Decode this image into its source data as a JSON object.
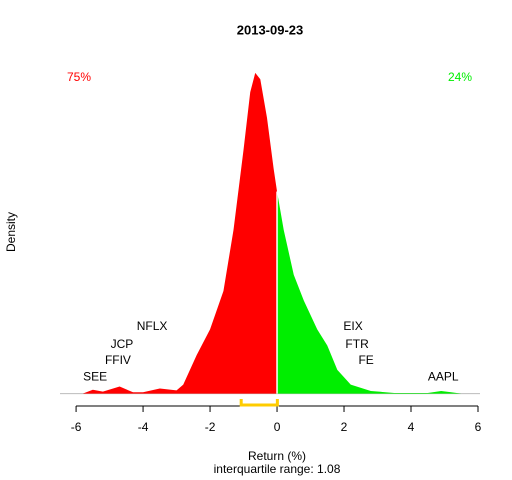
{
  "chart_data": {
    "type": "area",
    "title": "2013-09-23",
    "xlabel": "Return (%)",
    "ylabel": "Density",
    "subtitle": "interquartile range: 1.08",
    "xlim": [
      -6.48,
      6.06
    ],
    "ylim": [
      -0.01,
      0.52
    ],
    "xticks": [
      -6,
      -4,
      -2,
      0,
      2,
      4,
      6
    ],
    "series": [
      {
        "name": "75%",
        "color": "#ff0000",
        "x": [
          -5.8,
          -5.5,
          -5.2,
          -4.7,
          -4.3,
          -4.0,
          -3.5,
          -3.0,
          -2.8,
          -2.6,
          -2.4,
          -2.0,
          -1.6,
          -1.3,
          -1.0,
          -0.8,
          -0.65,
          -0.5,
          -0.3,
          -0.1,
          0
        ],
        "values": [
          0.0,
          0.006,
          0.003,
          0.011,
          0.002,
          0.002,
          0.008,
          0.005,
          0.014,
          0.037,
          0.06,
          0.1,
          0.16,
          0.255,
          0.38,
          0.47,
          0.5,
          0.49,
          0.43,
          0.35,
          0.315
        ]
      },
      {
        "name": "24%",
        "color": "#00ee00",
        "x": [
          0,
          0.2,
          0.5,
          0.8,
          1.2,
          1.5,
          1.8,
          2.2,
          2.8,
          3.5,
          4.5,
          4.9,
          5.2,
          5.5
        ],
        "values": [
          0.315,
          0.255,
          0.185,
          0.145,
          0.1,
          0.075,
          0.037,
          0.014,
          0.004,
          0.001,
          0.001,
          0.004,
          0.002,
          0.0
        ]
      }
    ],
    "annotations": [
      {
        "text": "NFLX",
        "x": -3.73,
        "y": 0.104
      },
      {
        "text": "JCP",
        "x": -4.63,
        "y": 0.076
      },
      {
        "text": "FFIV",
        "x": -4.75,
        "y": 0.051
      },
      {
        "text": "SEE",
        "x": -5.43,
        "y": 0.025
      },
      {
        "text": "EIX",
        "x": 2.27,
        "y": 0.104
      },
      {
        "text": "FTR",
        "x": 2.39,
        "y": 0.076
      },
      {
        "text": "FE",
        "x": 2.66,
        "y": 0.051
      },
      {
        "text": "AAPL",
        "x": 4.96,
        "y": 0.025
      }
    ],
    "iqr_bracket": {
      "color": "#ffcc00",
      "x": [
        -1.07,
        0.01
      ]
    }
  }
}
